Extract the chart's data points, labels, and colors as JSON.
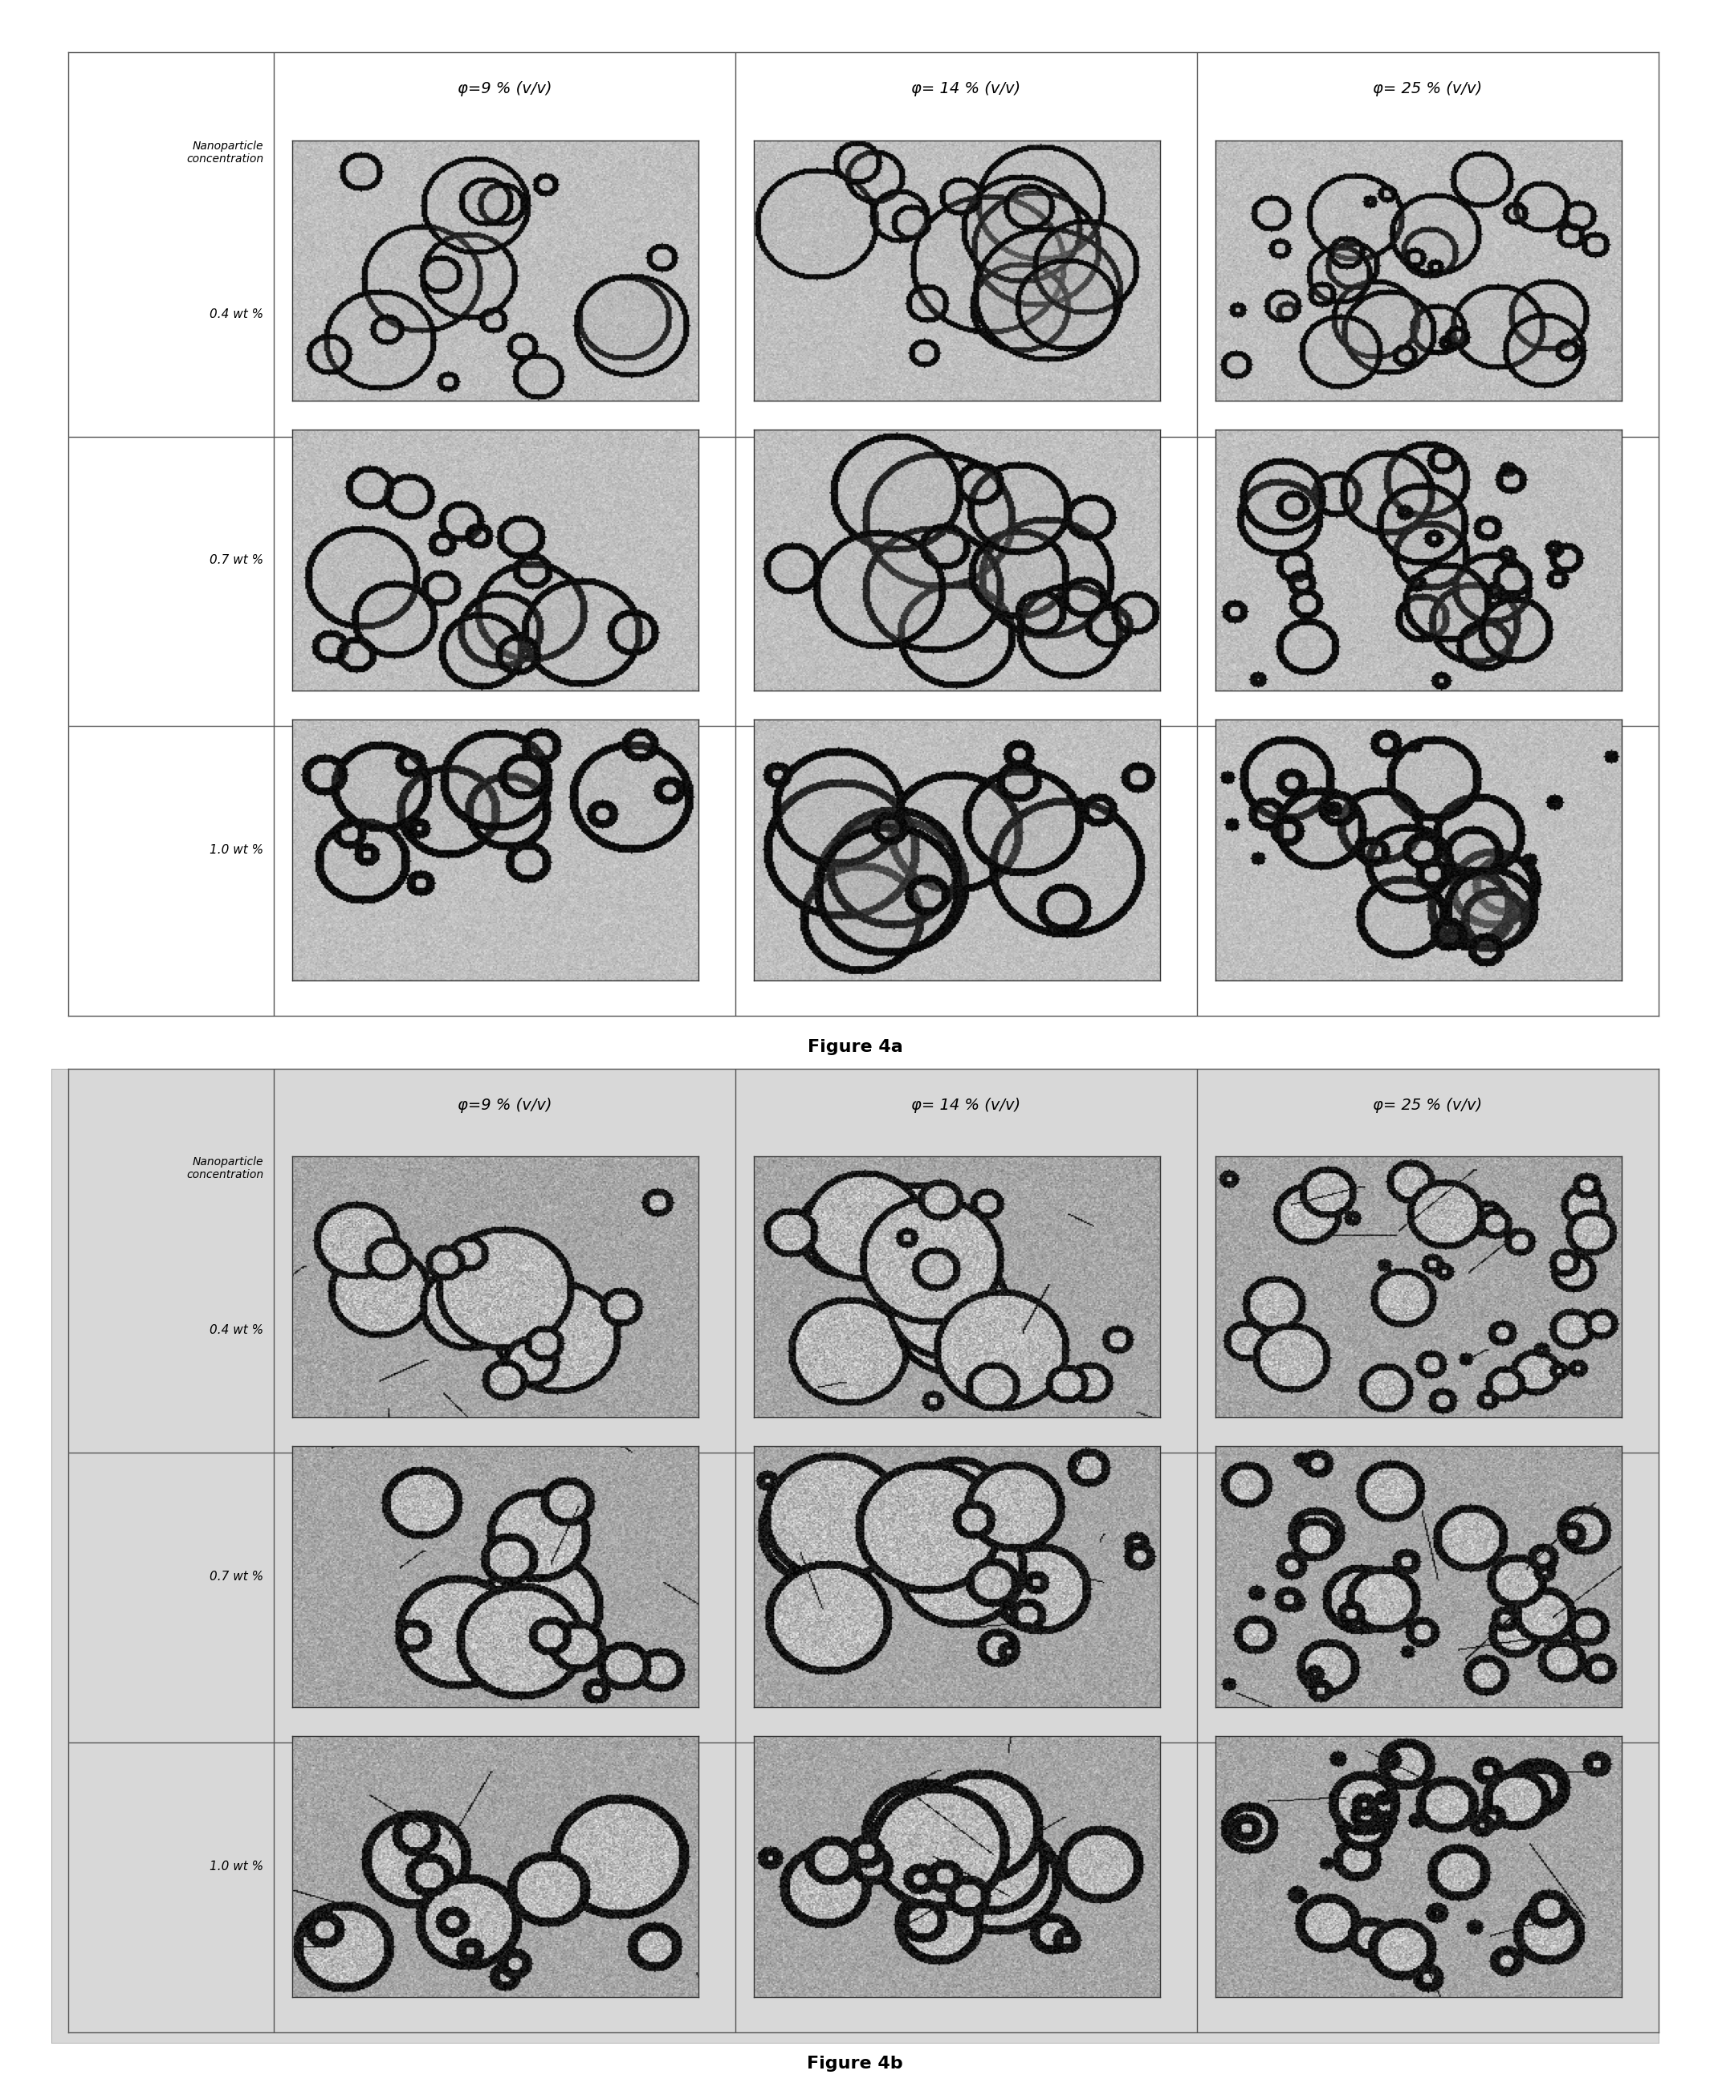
{
  "col_labels": [
    "φ=9 % (v/v)",
    "φ= 14 % (v/v)",
    "φ= 25 % (v/v)"
  ],
  "row_labels": [
    "Nanoparticle\nconcentration",
    "0.4 wt %",
    "0.7 wt %",
    "1.0 wt %"
  ],
  "figure_a_caption": "Figure 4a",
  "figure_b_caption": "Figure 4b",
  "background_color": "#ffffff",
  "figure_b_bg": "#e8e8e8",
  "grid_line_color": "#555555",
  "label_color": "#000000",
  "caption_fontsize": 18,
  "col_label_fontsize": 16,
  "row_label_fontsize": 14,
  "fig_width": 21.3,
  "fig_height": 26.09
}
